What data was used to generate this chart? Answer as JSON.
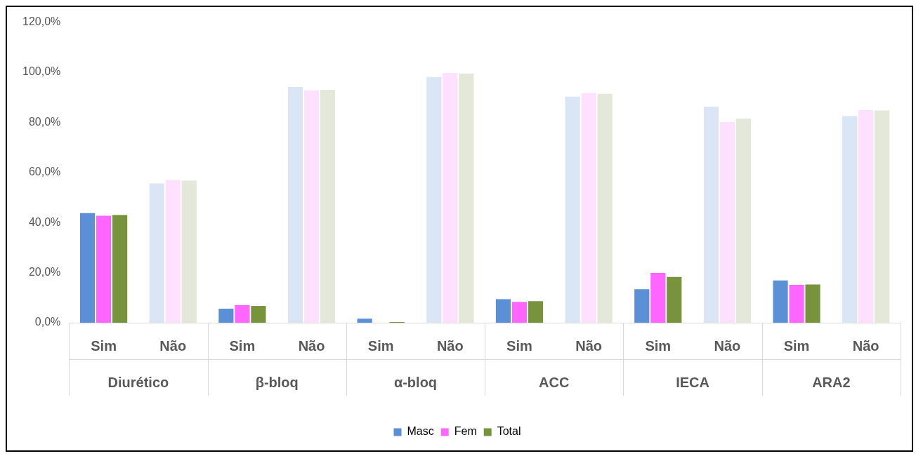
{
  "chart_data": {
    "type": "bar",
    "categories": [
      "Sim",
      "Não",
      "Sim",
      "Não",
      "Sim",
      "Não",
      "Sim",
      "Não",
      "Sim",
      "Não",
      "Sim",
      "Não"
    ],
    "annotations": [
      "Diurético",
      "β-bloq",
      "α-bloq",
      "ACC",
      "IECA",
      "ARA2"
    ],
    "series": [
      {
        "name": "Masc",
        "color": "#5b8fd6",
        "colors": [
          "#5b8fd6",
          "#dae6f6",
          "#5b8fd6",
          "#dae6f6",
          "#5b8fd6",
          "#dae6f6",
          "#5b8fd6",
          "#dae6f6",
          "#5b8fd6",
          "#dae6f6",
          "#5b8fd6",
          "#dae6f6"
        ],
        "values": [
          43.8,
          55.6,
          5.6,
          94.1,
          1.6,
          98.1,
          9.4,
          90.3,
          13.4,
          86.3,
          16.9,
          82.5
        ]
      },
      {
        "name": "Fem",
        "color": "#ff66ff",
        "colors": [
          "#ff66ff",
          "#ffe0ff",
          "#ff66ff",
          "#ffe0ff",
          "#ff66ff",
          "#ffe0ff",
          "#ff66ff",
          "#ffe0ff",
          "#ff66ff",
          "#ffe0ff",
          "#ff66ff",
          "#ffe0ff"
        ],
        "values": [
          42.7,
          57.0,
          7.0,
          92.7,
          0,
          99.7,
          8.3,
          91.7,
          19.9,
          80.1,
          15.1,
          84.9
        ]
      },
      {
        "name": "Total",
        "color": "#77933c",
        "colors": [
          "#77933c",
          "#e3e8d8",
          "#77933c",
          "#e3e8d8",
          "#77933c",
          "#e3e8d8",
          "#77933c",
          "#e3e8d8",
          "#77933c",
          "#e3e8d8",
          "#77933c",
          "#e3e8d8"
        ],
        "values": [
          43.0,
          56.7,
          6.7,
          93.0,
          0.3,
          99.5,
          8.6,
          91.4,
          18.3,
          81.5,
          15.3,
          84.7
        ]
      }
    ],
    "ylim": [
      0,
      120
    ],
    "yticks": [
      {
        "value": 0,
        "label": "0,0%"
      },
      {
        "value": 20,
        "label": "20,0%"
      },
      {
        "value": 40,
        "label": "40,0%"
      },
      {
        "value": 60,
        "label": "60,0%"
      },
      {
        "value": 80,
        "label": "80,0%"
      },
      {
        "value": 100,
        "label": "100,0%"
      },
      {
        "value": 120,
        "label": "120,0%"
      }
    ],
    "grid": false,
    "legend": "bottom"
  }
}
